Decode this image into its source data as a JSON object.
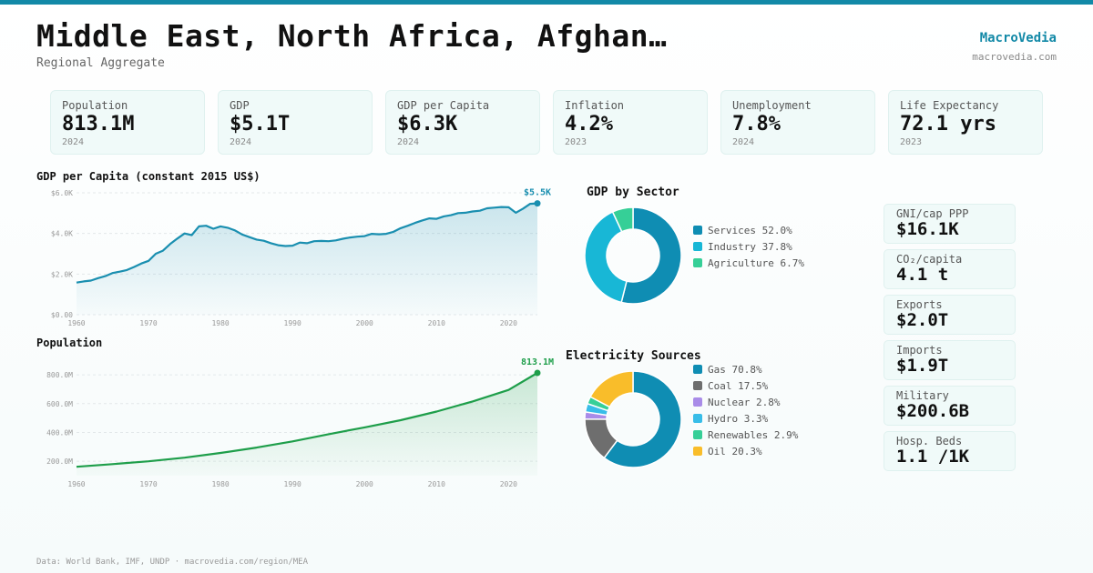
{
  "header": {
    "title": "Middle East, North Africa, Afghan…",
    "subtitle": "Regional Aggregate",
    "brand": "MacroVedia",
    "brand_url": "macrovedia.com"
  },
  "kpis": [
    {
      "label": "Population",
      "value": "813.1M",
      "year": "2024"
    },
    {
      "label": "GDP",
      "value": "$5.1T",
      "year": "2024"
    },
    {
      "label": "GDP per Capita",
      "value": "$6.3K",
      "year": "2024"
    },
    {
      "label": "Inflation",
      "value": "4.2%",
      "year": "2023"
    },
    {
      "label": "Unemployment",
      "value": "7.8%",
      "year": "2024"
    },
    {
      "label": "Life Expectancy",
      "value": "72.1 yrs",
      "year": "2023"
    }
  ],
  "side_stats": [
    {
      "label": "GNI/cap PPP",
      "value": "$16.1K"
    },
    {
      "label": "CO₂/capita",
      "value": "4.1 t"
    },
    {
      "label": "Exports",
      "value": "$2.0T"
    },
    {
      "label": "Imports",
      "value": "$1.9T"
    },
    {
      "label": "Military",
      "value": "$200.6B"
    },
    {
      "label": "Hosp. Beds",
      "value": "1.1 /1K"
    }
  ],
  "footer": "Data: World Bank, IMF, UNDP · macrovedia.com/region/MEA",
  "colors": {
    "accent": "#1289a7",
    "gdp_line": "#1a8fb0",
    "pop_line": "#1e9e4a"
  },
  "chart_data": [
    {
      "type": "area",
      "title": "GDP per Capita (constant 2015 US$)",
      "end_label": "$5.5K",
      "color": "#1a8fb0",
      "ylim": [
        0,
        6000
      ],
      "yticks": [
        0,
        2000,
        4000,
        6000
      ],
      "ytick_labels": [
        "$0.00",
        "$2.0K",
        "$4.0K",
        "$6.0K"
      ],
      "xticks": [
        1960,
        1970,
        1980,
        1990,
        2000,
        2010,
        2020
      ],
      "xlim": [
        1960,
        2024
      ],
      "grid": true,
      "x": [
        1960,
        1961,
        1962,
        1963,
        1964,
        1965,
        1966,
        1967,
        1968,
        1969,
        1970,
        1971,
        1972,
        1973,
        1974,
        1975,
        1976,
        1977,
        1978,
        1979,
        1980,
        1981,
        1982,
        1983,
        1984,
        1985,
        1986,
        1987,
        1988,
        1989,
        1990,
        1991,
        1992,
        1993,
        1994,
        1995,
        1996,
        1997,
        1998,
        1999,
        2000,
        2001,
        2002,
        2003,
        2004,
        2005,
        2006,
        2007,
        2008,
        2009,
        2010,
        2011,
        2012,
        2013,
        2014,
        2015,
        2016,
        2017,
        2018,
        2019,
        2020,
        2021,
        2022,
        2023,
        2024
      ],
      "y": [
        1580,
        1640,
        1680,
        1800,
        1900,
        2050,
        2120,
        2200,
        2350,
        2520,
        2650,
        3000,
        3150,
        3480,
        3750,
        4000,
        3920,
        4350,
        4380,
        4230,
        4350,
        4280,
        4150,
        3950,
        3820,
        3700,
        3640,
        3520,
        3420,
        3380,
        3400,
        3550,
        3520,
        3620,
        3630,
        3620,
        3660,
        3740,
        3800,
        3840,
        3870,
        3980,
        3960,
        3980,
        4080,
        4260,
        4380,
        4520,
        4640,
        4740,
        4720,
        4840,
        4900,
        5000,
        5020,
        5080,
        5120,
        5240,
        5270,
        5300,
        5290,
        5020,
        5220,
        5460,
        5480
      ]
    },
    {
      "type": "area",
      "title": "Population",
      "end_label": "813.1M",
      "color": "#1e9e4a",
      "ylim": [
        100,
        870
      ],
      "yticks": [
        200,
        400,
        600,
        800
      ],
      "ytick_labels": [
        "200.0M",
        "400.0M",
        "600.0M",
        "800.0M"
      ],
      "xticks": [
        1960,
        1970,
        1980,
        1990,
        2000,
        2010,
        2020
      ],
      "xlim": [
        1960,
        2024
      ],
      "grid": true,
      "x": [
        1960,
        1965,
        1970,
        1975,
        1980,
        1985,
        1990,
        1995,
        2000,
        2005,
        2010,
        2015,
        2020,
        2024
      ],
      "y": [
        162,
        180,
        200,
        225,
        258,
        295,
        338,
        388,
        435,
        485,
        545,
        615,
        695,
        813
      ]
    },
    {
      "type": "pie",
      "title": "GDP by Sector",
      "labels": [
        "Services",
        "Industry",
        "Agriculture"
      ],
      "values": [
        52.0,
        37.8,
        6.7
      ],
      "value_labels": [
        "52.0%",
        "37.8%",
        "6.7%"
      ],
      "colors": [
        "#0f8db3",
        "#18b7d6",
        "#36cf97"
      ],
      "legend": "right"
    },
    {
      "type": "pie",
      "title": "Electricity Sources",
      "labels": [
        "Gas",
        "Coal",
        "Nuclear",
        "Hydro",
        "Renewables",
        "Oil"
      ],
      "values": [
        70.8,
        17.5,
        2.8,
        3.3,
        2.9,
        20.3
      ],
      "value_labels": [
        "70.8%",
        "17.5%",
        "2.8%",
        "3.3%",
        "2.9%",
        "20.3%"
      ],
      "colors": [
        "#0f8db3",
        "#6e6e6e",
        "#a98ce8",
        "#38bde8",
        "#36cf97",
        "#f9bd2a"
      ],
      "legend": "right"
    }
  ]
}
